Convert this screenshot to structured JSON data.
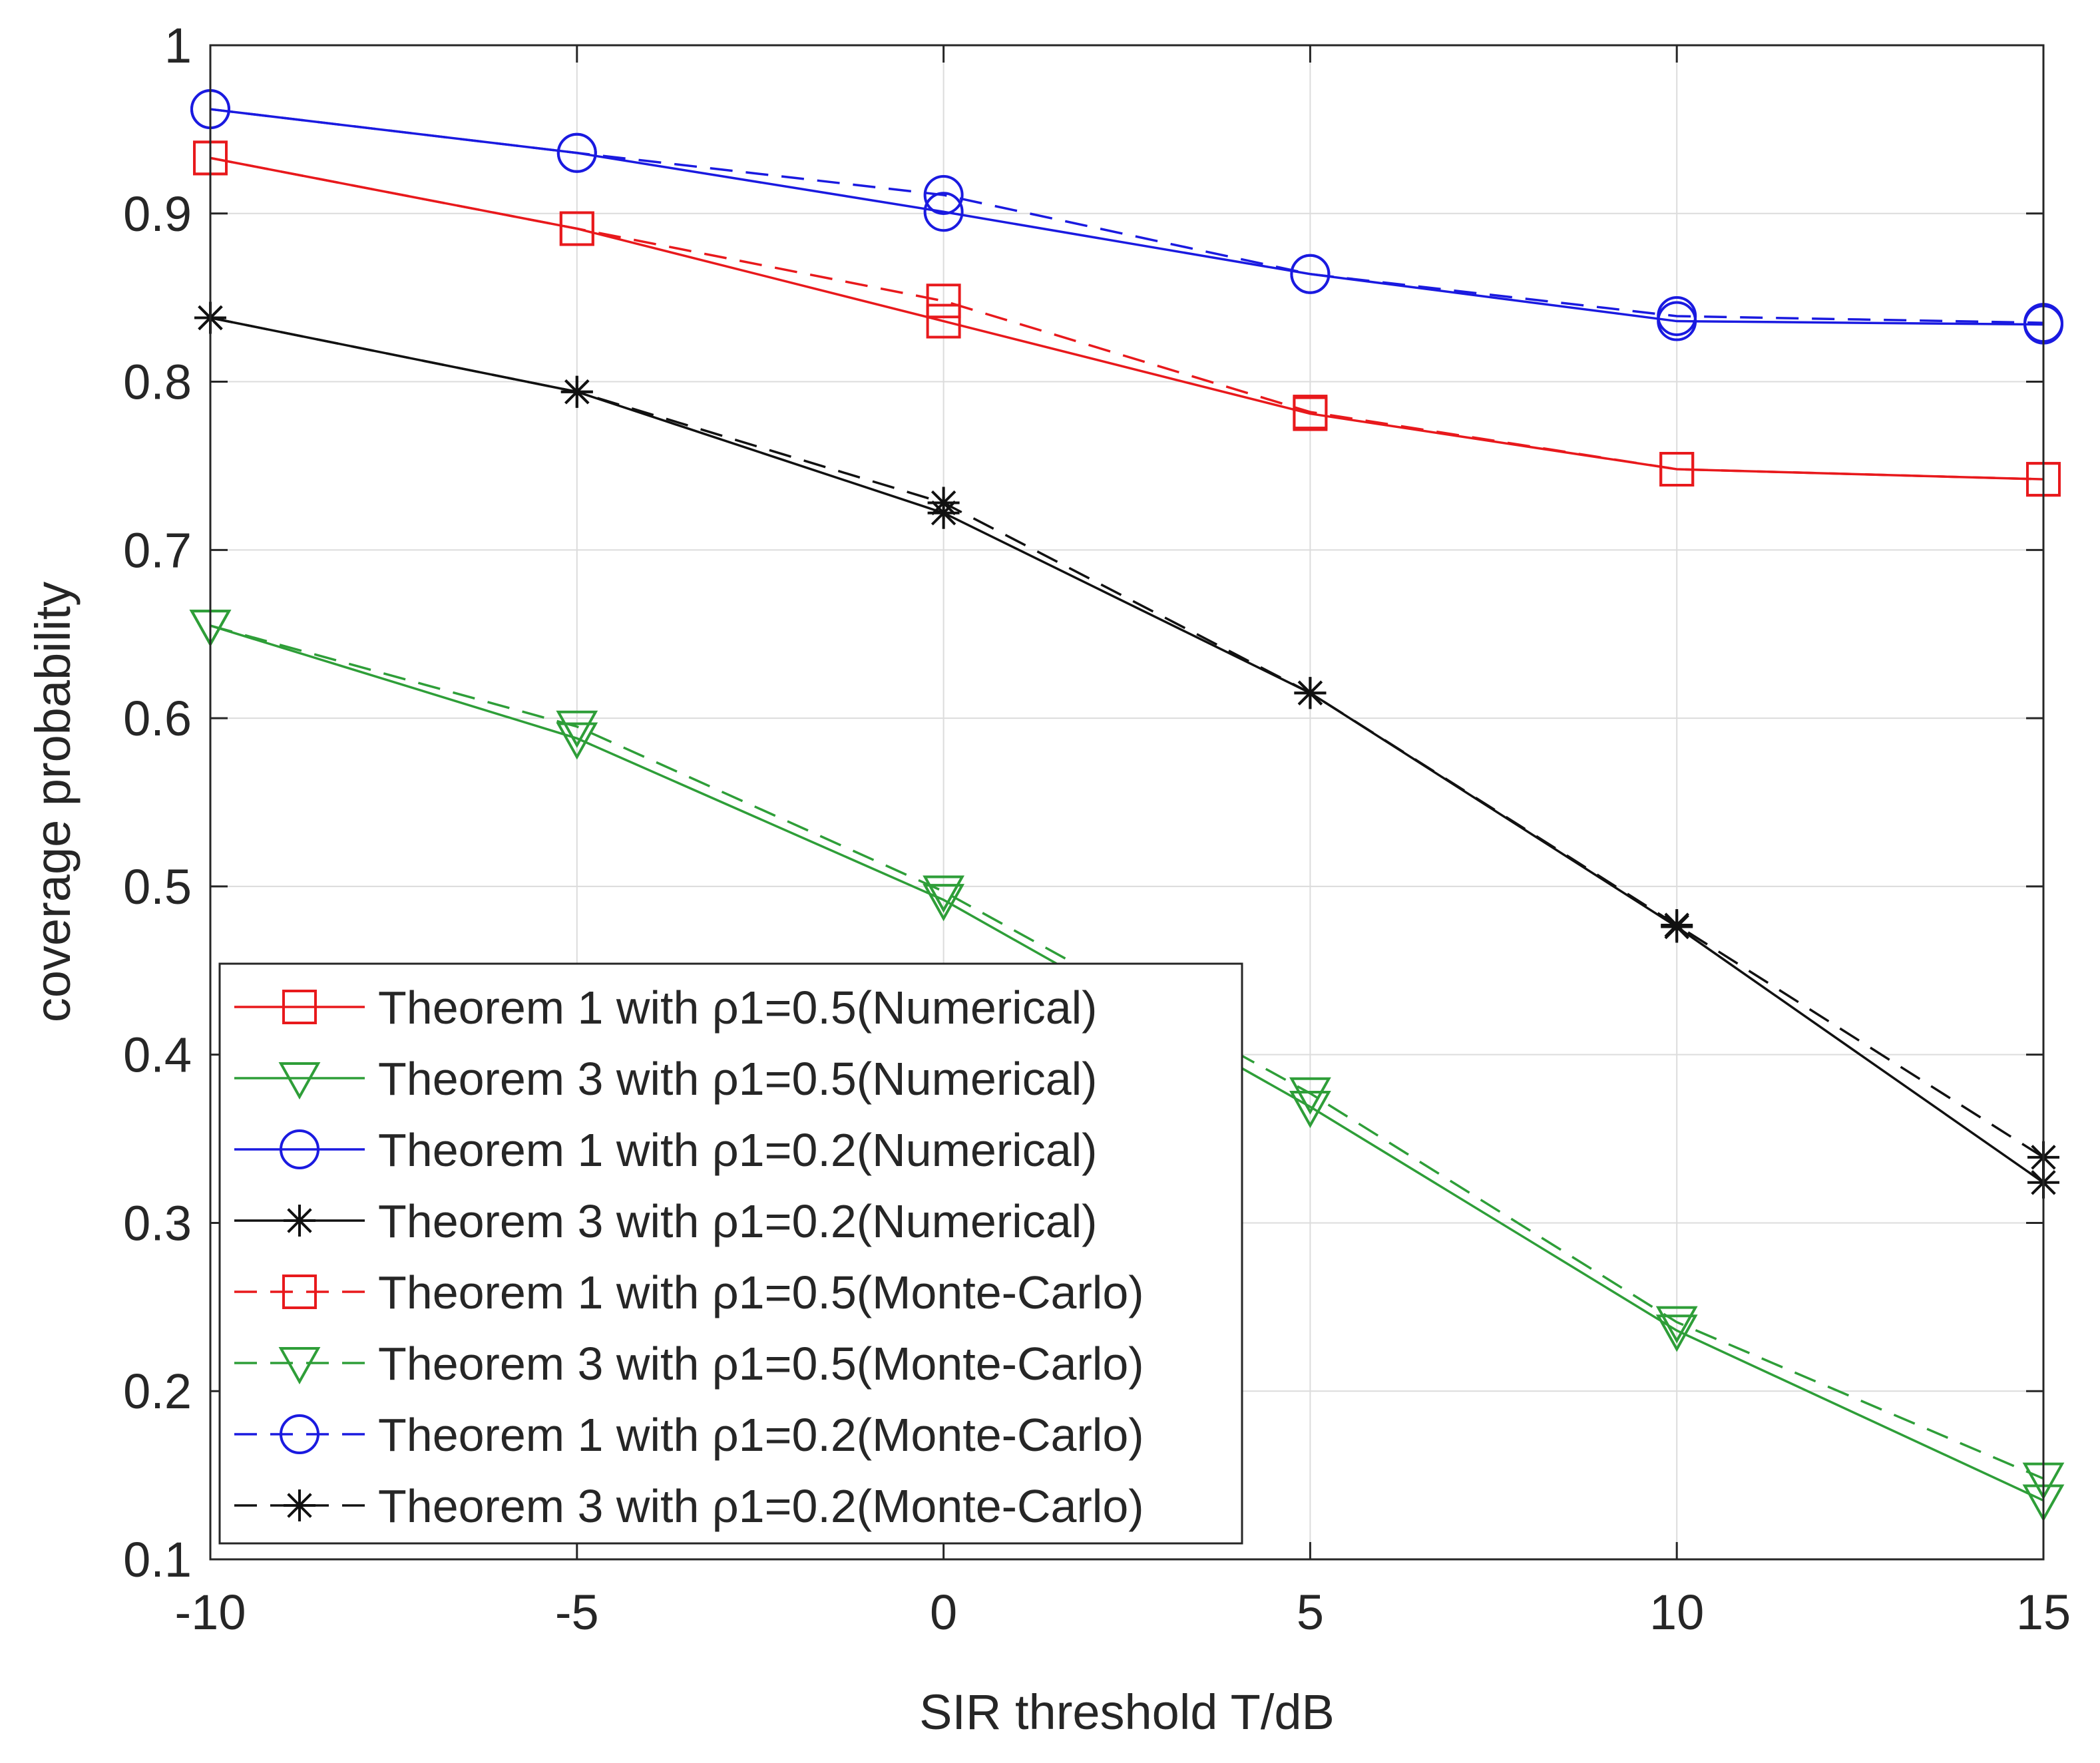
{
  "chart_data": {
    "type": "line",
    "title": "",
    "xlabel": "SIR threshold T/dB",
    "ylabel": "coverage probability",
    "xlim": [
      -10,
      15
    ],
    "ylim": [
      0.1,
      1
    ],
    "x_ticks": [
      -10,
      -5,
      0,
      5,
      10,
      15
    ],
    "x_tick_labels": [
      "-10",
      "-5",
      "0",
      "5",
      "10",
      "15"
    ],
    "y_ticks": [
      0.1,
      0.2,
      0.3,
      0.4,
      0.5,
      0.6,
      0.7,
      0.8,
      0.9,
      1
    ],
    "y_tick_labels": [
      "0.1",
      "0.2",
      "0.3",
      "0.4",
      "0.5",
      "0.6",
      "0.7",
      "0.8",
      "0.9",
      "1"
    ],
    "grid": true,
    "legend_position": "bottom-left",
    "x": [
      -10,
      -5,
      0,
      5,
      10,
      15
    ],
    "series": [
      {
        "name": "Theorem 1 with ρ1=0.5(Numerical)",
        "color": "#e8191c",
        "line": "solid",
        "marker": "square",
        "values": [
          0.933,
          0.891,
          0.836,
          0.781,
          0.748,
          0.742
        ]
      },
      {
        "name": "Theorem 3 with ρ1=0.5(Numerical)",
        "color": "#2e9e38",
        "line": "solid",
        "marker": "triangle-down",
        "values": [
          0.655,
          0.588,
          0.492,
          0.369,
          0.236,
          0.135
        ]
      },
      {
        "name": "Theorem 1 with ρ1=0.2(Numerical)",
        "color": "#1a1ae0",
        "line": "solid",
        "marker": "circle",
        "values": [
          0.962,
          0.936,
          0.901,
          0.864,
          0.836,
          0.834
        ]
      },
      {
        "name": "Theorem 3 with ρ1=0.2(Numerical)",
        "color": "#111111",
        "line": "solid",
        "marker": "asterisk",
        "values": [
          0.838,
          0.794,
          0.722,
          0.615,
          0.476,
          0.324
        ]
      },
      {
        "name": "Theorem 1 with ρ1=0.5(Monte-Carlo)",
        "color": "#e8191c",
        "line": "dashed",
        "marker": "square",
        "values": [
          0.933,
          0.891,
          0.848,
          0.782,
          0.748,
          0.742
        ]
      },
      {
        "name": "Theorem 3 with ρ1=0.5(Monte-Carlo)",
        "color": "#2e9e38",
        "line": "dashed",
        "marker": "triangle-down",
        "values": [
          0.655,
          0.595,
          0.497,
          0.377,
          0.241,
          0.148
        ]
      },
      {
        "name": "Theorem 1 with ρ1=0.2(Monte-Carlo)",
        "color": "#1a1ae0",
        "line": "dashed",
        "marker": "circle",
        "values": [
          0.962,
          0.936,
          0.911,
          0.864,
          0.839,
          0.835
        ]
      },
      {
        "name": "Theorem 3 with ρ1=0.2(Monte-Carlo)",
        "color": "#111111",
        "line": "dashed",
        "marker": "asterisk",
        "values": [
          0.838,
          0.794,
          0.728,
          0.615,
          0.477,
          0.339
        ]
      }
    ]
  }
}
